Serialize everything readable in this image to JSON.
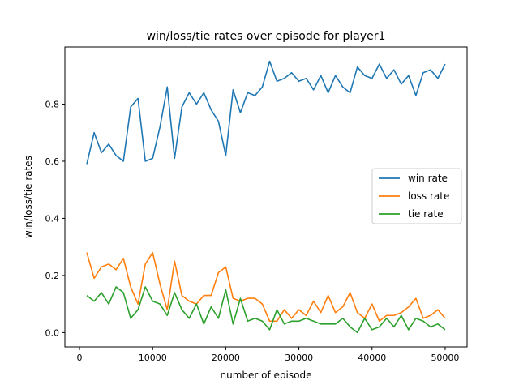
{
  "chart_data": {
    "type": "line",
    "title": "win/loss/tie rates over episode for player1",
    "xlabel": "number of episode",
    "ylabel": "win/loss/tie rates",
    "xlim": [
      -2000,
      53000
    ],
    "ylim": [
      -0.05,
      1.0
    ],
    "xticks": [
      0,
      10000,
      20000,
      30000,
      40000,
      50000
    ],
    "yticks": [
      0.0,
      0.2,
      0.4,
      0.6,
      0.8
    ],
    "xtick_labels": [
      "0",
      "10000",
      "20000",
      "30000",
      "40000",
      "50000"
    ],
    "ytick_labels": [
      "0.0",
      "0.2",
      "0.4",
      "0.6",
      "0.8"
    ],
    "grid": false,
    "legend": "center-right",
    "x": [
      1000,
      2000,
      3000,
      4000,
      5000,
      6000,
      7000,
      8000,
      9000,
      10000,
      11000,
      12000,
      13000,
      14000,
      15000,
      16000,
      17000,
      18000,
      19000,
      20000,
      21000,
      22000,
      23000,
      24000,
      25000,
      26000,
      27000,
      28000,
      29000,
      30000,
      31000,
      32000,
      33000,
      34000,
      35000,
      36000,
      37000,
      38000,
      39000,
      40000,
      41000,
      42000,
      43000,
      44000,
      45000,
      46000,
      47000,
      48000,
      49000,
      50000
    ],
    "series": [
      {
        "name": "win rate",
        "color": "#1f77b4",
        "values": [
          0.59,
          0.7,
          0.63,
          0.66,
          0.62,
          0.6,
          0.79,
          0.82,
          0.6,
          0.61,
          0.72,
          0.86,
          0.61,
          0.79,
          0.84,
          0.8,
          0.84,
          0.78,
          0.74,
          0.62,
          0.85,
          0.77,
          0.84,
          0.83,
          0.86,
          0.95,
          0.88,
          0.89,
          0.91,
          0.88,
          0.89,
          0.85,
          0.9,
          0.84,
          0.9,
          0.86,
          0.84,
          0.93,
          0.9,
          0.89,
          0.94,
          0.89,
          0.92,
          0.87,
          0.9,
          0.83,
          0.91,
          0.92,
          0.89,
          0.94
        ]
      },
      {
        "name": "loss rate",
        "color": "#ff7f0e",
        "values": [
          0.28,
          0.19,
          0.23,
          0.24,
          0.22,
          0.26,
          0.16,
          0.1,
          0.24,
          0.28,
          0.17,
          0.08,
          0.25,
          0.13,
          0.11,
          0.1,
          0.13,
          0.13,
          0.21,
          0.23,
          0.12,
          0.11,
          0.12,
          0.12,
          0.1,
          0.04,
          0.04,
          0.08,
          0.05,
          0.08,
          0.06,
          0.11,
          0.07,
          0.13,
          0.07,
          0.09,
          0.14,
          0.07,
          0.05,
          0.1,
          0.04,
          0.06,
          0.06,
          0.07,
          0.09,
          0.12,
          0.05,
          0.06,
          0.08,
          0.05
        ]
      },
      {
        "name": "tie rate",
        "color": "#2ca02c",
        "values": [
          0.13,
          0.11,
          0.14,
          0.1,
          0.16,
          0.14,
          0.05,
          0.08,
          0.16,
          0.11,
          0.1,
          0.06,
          0.14,
          0.08,
          0.05,
          0.1,
          0.03,
          0.09,
          0.05,
          0.15,
          0.03,
          0.12,
          0.04,
          0.05,
          0.04,
          0.01,
          0.08,
          0.03,
          0.04,
          0.04,
          0.05,
          0.04,
          0.03,
          0.03,
          0.03,
          0.05,
          0.02,
          0.0,
          0.05,
          0.01,
          0.02,
          0.05,
          0.02,
          0.06,
          0.01,
          0.05,
          0.04,
          0.02,
          0.03,
          0.01
        ]
      }
    ]
  }
}
